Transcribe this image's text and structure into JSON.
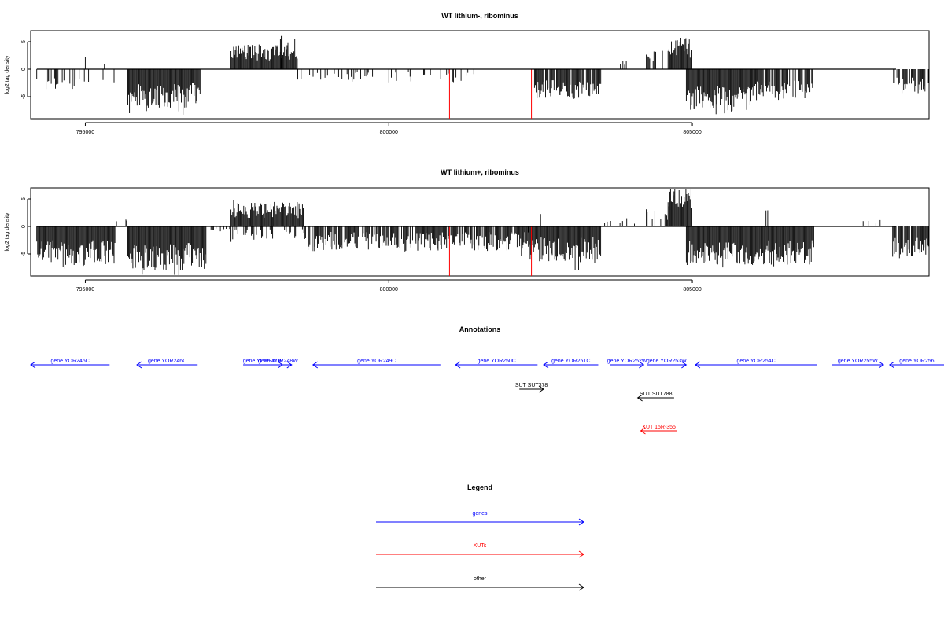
{
  "chart_data": [
    {
      "type": "bar",
      "title": "WT lithium-, ribominus",
      "xlabel": "",
      "ylabel": "log2 tag density",
      "xlim": [
        794100,
        808900
      ],
      "ylim": [
        -9,
        7
      ],
      "xticks": [
        795000,
        800000,
        805000
      ],
      "xtick_labels": [
        "795000",
        "800000",
        "805000"
      ],
      "yticks": [
        -5,
        0,
        5
      ],
      "ytick_labels": [
        "-5",
        "0",
        "5"
      ],
      "baseline": [
        794200,
        809200
      ],
      "clusters": [
        {
          "start": 794200,
          "end": 794900,
          "sign": -1,
          "amp": [
            1.5,
            3.8
          ],
          "density": 0.35
        },
        {
          "start": 794900,
          "end": 795500,
          "sign": -1,
          "amp": [
            0.8,
            2.5
          ],
          "density": 0.15
        },
        {
          "start": 795000,
          "end": 795050,
          "sign": 1,
          "amp": [
            2.2,
            2.4
          ],
          "density": 0.4
        },
        {
          "start": 795300,
          "end": 795350,
          "sign": 1,
          "amp": [
            0.8,
            1.1
          ],
          "density": 0.4
        },
        {
          "start": 795700,
          "end": 796900,
          "sign": -1,
          "amp": [
            2.5,
            7.0
          ],
          "density": 1.0
        },
        {
          "start": 797400,
          "end": 798500,
          "sign": 1,
          "amp": [
            1.5,
            4.5
          ],
          "density": 1.0
        },
        {
          "start": 798200,
          "end": 798250,
          "sign": 1,
          "amp": [
            5.5,
            6.5
          ],
          "density": 0.4
        },
        {
          "start": 798500,
          "end": 799800,
          "sign": -1,
          "amp": [
            0.5,
            2.0
          ],
          "density": 0.25
        },
        {
          "start": 800000,
          "end": 801400,
          "sign": -1,
          "amp": [
            0.5,
            2.5
          ],
          "density": 0.2
        },
        {
          "start": 802400,
          "end": 803500,
          "sign": -1,
          "amp": [
            2.0,
            5.5
          ],
          "density": 0.9
        },
        {
          "start": 803800,
          "end": 804200,
          "sign": 1,
          "amp": [
            0.5,
            2.0
          ],
          "density": 0.1
        },
        {
          "start": 804200,
          "end": 804600,
          "sign": 1,
          "amp": [
            1.5,
            3.5
          ],
          "density": 0.3
        },
        {
          "start": 804600,
          "end": 805000,
          "sign": 1,
          "amp": [
            2.0,
            5.8
          ],
          "density": 1.0
        },
        {
          "start": 804900,
          "end": 806000,
          "sign": -1,
          "amp": [
            3.0,
            7.5
          ],
          "density": 1.0
        },
        {
          "start": 806000,
          "end": 807000,
          "sign": -1,
          "amp": [
            2.0,
            5.5
          ],
          "density": 0.8
        },
        {
          "start": 808300,
          "end": 809200,
          "sign": -1,
          "amp": [
            1.5,
            4.5
          ],
          "density": 0.6
        }
      ],
      "red_spikes": [
        {
          "x": 801000,
          "y": -9
        },
        {
          "x": 802350,
          "y": -9
        }
      ]
    },
    {
      "type": "bar",
      "title": "WT lithium+, ribominus",
      "xlabel": "",
      "ylabel": "log2 tag density",
      "xlim": [
        794100,
        808900
      ],
      "ylim": [
        -9,
        7
      ],
      "xticks": [
        795000,
        800000,
        805000
      ],
      "xtick_labels": [
        "795000",
        "800000",
        "805000"
      ],
      "yticks": [
        -5,
        0,
        5
      ],
      "ytick_labels": [
        "-5",
        "0",
        "5"
      ],
      "baseline": [
        794200,
        809200
      ],
      "clusters": [
        {
          "start": 794200,
          "end": 795500,
          "sign": -1,
          "amp": [
            2.5,
            7.0
          ],
          "density": 1.0
        },
        {
          "start": 794300,
          "end": 794350,
          "sign": 1,
          "amp": [
            2.4,
            2.6
          ],
          "density": 0.4
        },
        {
          "start": 795500,
          "end": 795700,
          "sign": 1,
          "amp": [
            0.5,
            1.5
          ],
          "density": 0.3
        },
        {
          "start": 795700,
          "end": 797000,
          "sign": -1,
          "amp": [
            3.0,
            8.0
          ],
          "density": 1.0
        },
        {
          "start": 797000,
          "end": 797400,
          "sign": -1,
          "amp": [
            0.3,
            1.0
          ],
          "density": 0.2
        },
        {
          "start": 797400,
          "end": 798600,
          "sign": 1,
          "amp": [
            1.5,
            4.5
          ],
          "density": 1.0
        },
        {
          "start": 797400,
          "end": 798600,
          "sign": -1,
          "amp": [
            0.5,
            2.5
          ],
          "density": 0.3
        },
        {
          "start": 798600,
          "end": 802300,
          "sign": -1,
          "amp": [
            1.0,
            4.5
          ],
          "density": 0.8
        },
        {
          "start": 802300,
          "end": 803500,
          "sign": -1,
          "amp": [
            2.0,
            6.5
          ],
          "density": 1.0
        },
        {
          "start": 802500,
          "end": 802550,
          "sign": 1,
          "amp": [
            2.2,
            2.4
          ],
          "density": 0.4
        },
        {
          "start": 803500,
          "end": 804200,
          "sign": 1,
          "amp": [
            0.3,
            1.5
          ],
          "density": 0.1
        },
        {
          "start": 804200,
          "end": 804600,
          "sign": 1,
          "amp": [
            1.0,
            3.5
          ],
          "density": 0.3
        },
        {
          "start": 804600,
          "end": 805000,
          "sign": 1,
          "amp": [
            3.0,
            7.0
          ],
          "density": 1.0
        },
        {
          "start": 804900,
          "end": 807000,
          "sign": -1,
          "amp": [
            2.5,
            7.0
          ],
          "density": 1.0
        },
        {
          "start": 806200,
          "end": 806250,
          "sign": 1,
          "amp": [
            2.5,
            3.0
          ],
          "density": 0.4
        },
        {
          "start": 807800,
          "end": 808100,
          "sign": 1,
          "amp": [
            0.5,
            1.2
          ],
          "density": 0.1
        },
        {
          "start": 808300,
          "end": 809200,
          "sign": -1,
          "amp": [
            2.0,
            5.5
          ],
          "density": 0.9
        }
      ],
      "red_spikes": [
        {
          "x": 801000,
          "y": -9
        },
        {
          "x": 802350,
          "y": -9
        }
      ]
    }
  ],
  "annotations": {
    "title": "Annotations",
    "features": [
      {
        "label": "gene YOR245C",
        "type": "gene",
        "strand": "-",
        "start": 794100,
        "end": 795400,
        "row": 0
      },
      {
        "label": "gene YOR246C",
        "type": "gene",
        "strand": "-",
        "start": 795850,
        "end": 796850,
        "row": 0
      },
      {
        "label": "gene YOR247W",
        "type": "gene",
        "strand": "+",
        "start": 797600,
        "end": 798250,
        "row": 0
      },
      {
        "label": "gene YOR248W",
        "type": "gene",
        "strand": "+",
        "start": 797950,
        "end": 798400,
        "row": 0
      },
      {
        "label": "gene YOR249C",
        "type": "gene",
        "strand": "-",
        "start": 798750,
        "end": 800850,
        "row": 0
      },
      {
        "label": "gene YOR250C",
        "type": "gene",
        "strand": "-",
        "start": 801100,
        "end": 802450,
        "row": 0
      },
      {
        "label": "gene YOR251C",
        "type": "gene",
        "strand": "-",
        "start": 802550,
        "end": 803450,
        "row": 0
      },
      {
        "label": "gene YOR252W",
        "type": "gene",
        "strand": "+",
        "start": 803650,
        "end": 804200,
        "row": 0
      },
      {
        "label": "gene YOR253W",
        "type": "gene",
        "strand": "+",
        "start": 804250,
        "end": 804900,
        "row": 0
      },
      {
        "label": "gene YOR254C",
        "type": "gene",
        "strand": "-",
        "start": 805050,
        "end": 807050,
        "row": 0
      },
      {
        "label": "gene YOR255W",
        "type": "gene",
        "strand": "+",
        "start": 807300,
        "end": 808150,
        "row": 0
      },
      {
        "label": "gene YOR256",
        "type": "gene",
        "strand": "-",
        "start": 808250,
        "end": 809800,
        "row": 0
      },
      {
        "label": "SUT SUT378",
        "type": "other",
        "strand": "+",
        "start": 802150,
        "end": 802550,
        "row": 1
      },
      {
        "label": "SUT SUT788",
        "type": "other",
        "strand": "-",
        "start": 804100,
        "end": 804700,
        "row": 2
      },
      {
        "label": "XUT 15R-355",
        "type": "xut",
        "strand": "-",
        "start": 804150,
        "end": 804750,
        "row": 3
      }
    ]
  },
  "legend": {
    "title": "Legend",
    "items": [
      {
        "label": "genes",
        "color": "#0000ff"
      },
      {
        "label": "XUTs",
        "color": "#ff0000"
      },
      {
        "label": "other",
        "color": "#000000"
      }
    ]
  },
  "colors": {
    "gene": "#0000ff",
    "xut": "#ff0000",
    "other": "#000000",
    "spike": "#ff0000"
  }
}
